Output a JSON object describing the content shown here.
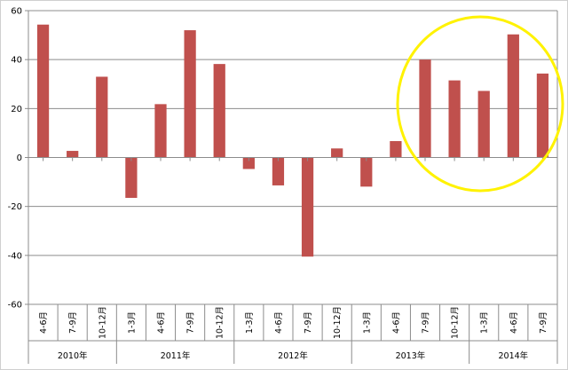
{
  "chart_data": {
    "type": "bar",
    "categories": [
      "4-6月",
      "7-9月",
      "10-12月",
      "1-3月",
      "4-6月",
      "7-9月",
      "10-12月",
      "1-3月",
      "4-6月",
      "7-9月",
      "10-12月",
      "1-3月",
      "4-6月",
      "7-9月",
      "10-12月",
      "1-3月",
      "4-6月",
      "7-9月"
    ],
    "groups": [
      {
        "label": "2010年",
        "count": 3
      },
      {
        "label": "2011年",
        "count": 4
      },
      {
        "label": "2012年",
        "count": 4
      },
      {
        "label": "2013年",
        "count": 4
      },
      {
        "label": "2014年",
        "count": 3
      }
    ],
    "values": [
      54.3,
      2.7,
      33.0,
      -16.5,
      21.8,
      52.0,
      38.2,
      -4.7,
      -11.4,
      -40.5,
      3.7,
      -11.9,
      6.7,
      40.0,
      31.5,
      27.2,
      50.3,
      34.3
    ],
    "ylim": [
      -60,
      60
    ],
    "yticks": [
      -60,
      -40,
      -20,
      0,
      20,
      40,
      60
    ],
    "grid": true,
    "bar_color": "#C0504D",
    "highlight_color": "#FFF200",
    "title": "",
    "xlabel": "",
    "ylabel": ""
  }
}
